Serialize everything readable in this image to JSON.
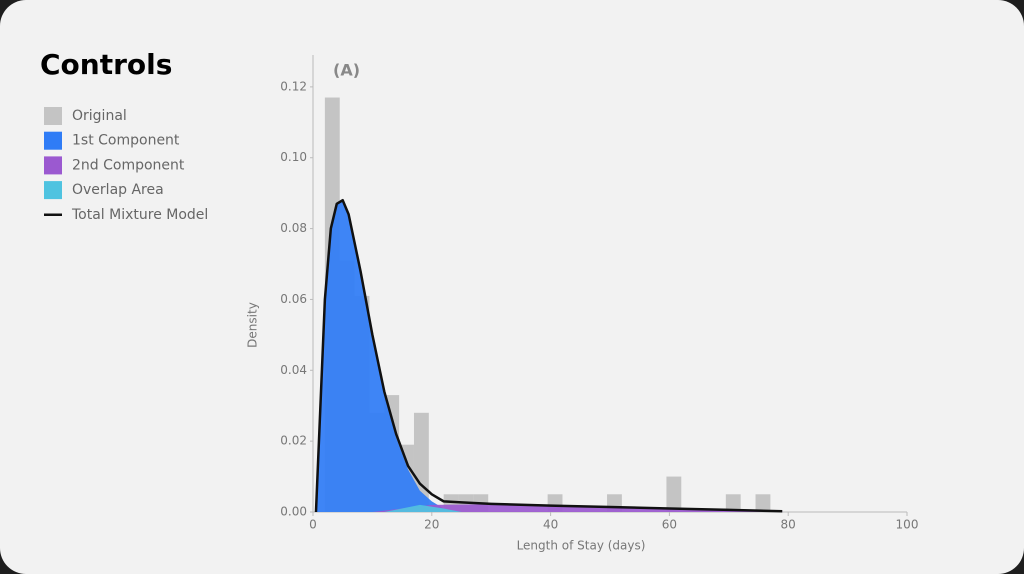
{
  "panel_title": "Controls",
  "chart_data": {
    "type": "histogram",
    "title": "(A)",
    "x_label": "Length of Stay (days)",
    "y_label": "Density",
    "name": "Original",
    "color": "#c4c4c4",
    "bins": [
      2,
      4.5,
      7,
      9.5,
      12,
      14.5,
      17,
      19.5,
      22,
      24.5,
      27,
      29.5,
      32,
      34.5,
      37,
      39.5,
      42,
      44.5,
      47,
      49.5,
      52,
      54.5,
      57,
      59.5,
      62,
      64.5,
      67,
      69.5,
      72,
      74.5,
      77
    ],
    "values": [
      0.117,
      0.071,
      0.061,
      0.028,
      0.033,
      0.019,
      0.028,
      0,
      0.005,
      0.005,
      0.005,
      0,
      0,
      0,
      0,
      0.005,
      0,
      0,
      0,
      0.005,
      0,
      0,
      0,
      0.01,
      0,
      0,
      0,
      0.005,
      0,
      0.005
    ],
    "series": [
      {
        "name": "1st Component",
        "type": "area",
        "color": "#2f7cf6",
        "x": [
          0.5,
          1,
          2,
          3,
          4,
          5,
          6,
          8,
          10,
          12,
          14,
          16,
          18,
          20,
          22,
          25
        ],
        "values": [
          0,
          0.02,
          0.06,
          0.08,
          0.087,
          0.088,
          0.084,
          0.068,
          0.05,
          0.034,
          0.021,
          0.012,
          0.006,
          0.003,
          0.001,
          0
        ]
      },
      {
        "name": "2nd Component",
        "type": "area",
        "color": "#9b59d0",
        "x": [
          10,
          20,
          30,
          40,
          50,
          60,
          70,
          79
        ],
        "values": [
          0,
          0.002,
          0.0022,
          0.0018,
          0.0014,
          0.001,
          0.0006,
          0.0002
        ]
      },
      {
        "name": "Overlap Area",
        "type": "area",
        "color": "#4fc3e0",
        "x": [
          12,
          18,
          22,
          25
        ],
        "values": [
          0,
          0.002,
          0.001,
          0
        ]
      },
      {
        "name": "Total Mixture Model",
        "type": "line",
        "color": "#111111",
        "x": [
          0.5,
          1,
          2,
          3,
          4,
          5,
          6,
          8,
          10,
          12,
          14,
          16,
          18,
          20,
          22,
          25,
          30,
          40,
          50,
          60,
          70,
          79
        ],
        "values": [
          0,
          0.02,
          0.06,
          0.08,
          0.087,
          0.088,
          0.084,
          0.068,
          0.05,
          0.034,
          0.022,
          0.013,
          0.008,
          0.005,
          0.003,
          0.0027,
          0.0023,
          0.0018,
          0.0014,
          0.001,
          0.0006,
          0.0002
        ]
      }
    ],
    "xlim": [
      0,
      100
    ],
    "ylim": [
      0,
      0.129
    ],
    "xticks": [
      0,
      20,
      40,
      60,
      80,
      100
    ],
    "yticks": [
      {
        "value": 0,
        "label": "0.00"
      },
      {
        "value": 0.02,
        "label": "0.02"
      },
      {
        "value": 0.04,
        "label": "0.04"
      },
      {
        "value": 0.06,
        "label": "0.06"
      },
      {
        "value": 0.08,
        "label": "0.08"
      },
      {
        "value": 0.1,
        "label": "0.10"
      },
      {
        "value": 0.12,
        "label": "0.12"
      }
    ]
  }
}
